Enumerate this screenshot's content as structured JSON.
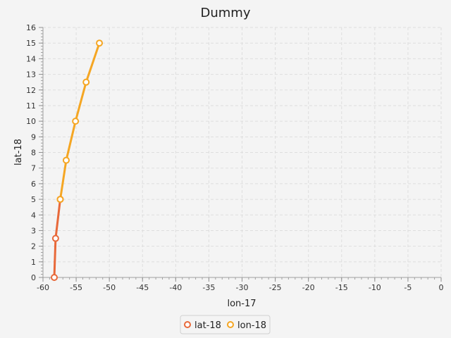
{
  "chart_data": {
    "type": "line",
    "title": "Dummy",
    "xlabel": "lon-17",
    "ylabel": "lat-18",
    "xlim": [
      -60,
      0
    ],
    "ylim": [
      0,
      16
    ],
    "x_ticks": [
      -60,
      -55,
      -50,
      -45,
      -40,
      -35,
      -30,
      -25,
      -20,
      -15,
      -10,
      -5,
      0
    ],
    "y_ticks": [
      0,
      1,
      2,
      3,
      4,
      5,
      6,
      7,
      8,
      9,
      10,
      11,
      12,
      13,
      14,
      15,
      16
    ],
    "grid": true,
    "legend": "bottom-center",
    "series": [
      {
        "name": "lat-18",
        "color": "#e8693a",
        "marker": "open-circle",
        "points": [
          {
            "x": -58.3,
            "y": 0
          },
          {
            "x": -58.1,
            "y": 2.5
          },
          {
            "x": -57.4,
            "y": 5
          }
        ]
      },
      {
        "name": "lon-18",
        "color": "#f5a623",
        "marker": "open-circle",
        "points": [
          {
            "x": -57.4,
            "y": 5
          },
          {
            "x": -56.5,
            "y": 7.5
          },
          {
            "x": -55.1,
            "y": 10
          },
          {
            "x": -53.5,
            "y": 12.5
          },
          {
            "x": -51.5,
            "y": 15
          }
        ]
      }
    ]
  }
}
